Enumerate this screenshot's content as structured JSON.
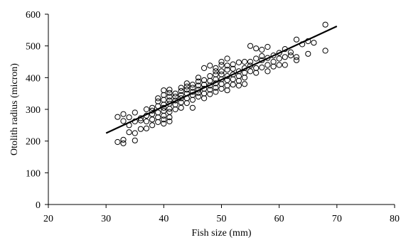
{
  "chart_data": {
    "type": "scatter",
    "title": "",
    "xlabel": "Fish size (mm)",
    "ylabel": "Otolith radius (micron)",
    "xlim": [
      20,
      80
    ],
    "ylim": [
      0,
      600
    ],
    "xticks": [
      20,
      30,
      40,
      50,
      60,
      70,
      80
    ],
    "yticks": [
      0,
      100,
      200,
      300,
      400,
      500,
      600
    ],
    "grid": false,
    "legend": "none",
    "marker": "open-circle",
    "line_color": "#000000",
    "marker_color": "#000000",
    "fit_line": {
      "x": [
        30,
        70
      ],
      "y": [
        225,
        562
      ]
    },
    "points": [
      [
        32,
        197
      ],
      [
        32,
        276
      ],
      [
        33,
        193
      ],
      [
        33,
        204
      ],
      [
        33,
        263
      ],
      [
        33,
        285
      ],
      [
        34,
        228
      ],
      [
        34,
        250
      ],
      [
        34,
        275
      ],
      [
        35,
        202
      ],
      [
        35,
        225
      ],
      [
        35,
        262
      ],
      [
        35,
        290
      ],
      [
        36,
        238
      ],
      [
        36,
        265
      ],
      [
        36,
        272
      ],
      [
        37,
        240
      ],
      [
        37,
        262
      ],
      [
        37,
        280
      ],
      [
        37,
        300
      ],
      [
        38,
        250
      ],
      [
        38,
        268
      ],
      [
        38,
        285
      ],
      [
        38,
        296
      ],
      [
        38,
        305
      ],
      [
        39,
        260
      ],
      [
        39,
        275
      ],
      [
        39,
        290
      ],
      [
        39,
        310
      ],
      [
        39,
        325
      ],
      [
        39,
        335
      ],
      [
        40,
        255
      ],
      [
        40,
        268
      ],
      [
        40,
        280
      ],
      [
        40,
        295
      ],
      [
        40,
        305
      ],
      [
        40,
        315
      ],
      [
        40,
        330
      ],
      [
        40,
        345
      ],
      [
        40,
        360
      ],
      [
        41,
        262
      ],
      [
        41,
        275
      ],
      [
        41,
        292
      ],
      [
        41,
        302
      ],
      [
        41,
        318
      ],
      [
        41,
        328
      ],
      [
        41,
        340
      ],
      [
        41,
        352
      ],
      [
        41,
        362
      ],
      [
        42,
        300
      ],
      [
        42,
        315
      ],
      [
        42,
        328
      ],
      [
        42,
        340
      ],
      [
        42,
        350
      ],
      [
        43,
        305
      ],
      [
        43,
        322
      ],
      [
        43,
        335
      ],
      [
        43,
        345
      ],
      [
        43,
        358
      ],
      [
        43,
        368
      ],
      [
        44,
        320
      ],
      [
        44,
        335
      ],
      [
        44,
        350
      ],
      [
        44,
        362
      ],
      [
        44,
        372
      ],
      [
        44,
        382
      ],
      [
        45,
        305
      ],
      [
        45,
        330
      ],
      [
        45,
        345
      ],
      [
        45,
        355
      ],
      [
        45,
        368
      ],
      [
        45,
        378
      ],
      [
        46,
        340
      ],
      [
        46,
        352
      ],
      [
        46,
        362
      ],
      [
        46,
        375
      ],
      [
        46,
        388
      ],
      [
        46,
        400
      ],
      [
        47,
        335
      ],
      [
        47,
        350
      ],
      [
        47,
        365
      ],
      [
        47,
        378
      ],
      [
        47,
        392
      ],
      [
        47,
        430
      ],
      [
        48,
        348
      ],
      [
        48,
        362
      ],
      [
        48,
        375
      ],
      [
        48,
        390
      ],
      [
        48,
        405
      ],
      [
        48,
        438
      ],
      [
        49,
        355
      ],
      [
        49,
        368
      ],
      [
        49,
        382
      ],
      [
        49,
        395
      ],
      [
        49,
        410
      ],
      [
        49,
        420
      ],
      [
        49,
        430
      ],
      [
        50,
        365
      ],
      [
        50,
        380
      ],
      [
        50,
        395
      ],
      [
        50,
        410
      ],
      [
        50,
        420
      ],
      [
        50,
        440
      ],
      [
        50,
        450
      ],
      [
        51,
        360
      ],
      [
        51,
        375
      ],
      [
        51,
        392
      ],
      [
        51,
        405
      ],
      [
        51,
        425
      ],
      [
        51,
        438
      ],
      [
        51,
        460
      ],
      [
        52,
        378
      ],
      [
        52,
        395
      ],
      [
        52,
        410
      ],
      [
        52,
        428
      ],
      [
        52,
        442
      ],
      [
        53,
        375
      ],
      [
        53,
        390
      ],
      [
        53,
        405
      ],
      [
        53,
        420
      ],
      [
        53,
        448
      ],
      [
        54,
        380
      ],
      [
        54,
        400
      ],
      [
        54,
        415
      ],
      [
        54,
        430
      ],
      [
        54,
        450
      ],
      [
        55,
        420
      ],
      [
        55,
        438
      ],
      [
        55,
        450
      ],
      [
        55,
        500
      ],
      [
        56,
        415
      ],
      [
        56,
        430
      ],
      [
        56,
        460
      ],
      [
        56,
        492
      ],
      [
        57,
        432
      ],
      [
        57,
        455
      ],
      [
        57,
        468
      ],
      [
        57,
        488
      ],
      [
        58,
        420
      ],
      [
        58,
        440
      ],
      [
        58,
        462
      ],
      [
        58,
        497
      ],
      [
        59,
        435
      ],
      [
        59,
        450
      ],
      [
        59,
        470
      ],
      [
        60,
        440
      ],
      [
        60,
        460
      ],
      [
        60,
        478
      ],
      [
        61,
        440
      ],
      [
        61,
        465
      ],
      [
        61,
        490
      ],
      [
        62,
        470
      ],
      [
        62,
        480
      ],
      [
        63,
        455
      ],
      [
        63,
        465
      ],
      [
        63,
        520
      ],
      [
        64,
        505
      ],
      [
        65,
        475
      ],
      [
        65,
        515
      ],
      [
        66,
        510
      ],
      [
        68,
        485
      ],
      [
        68,
        567
      ]
    ]
  }
}
